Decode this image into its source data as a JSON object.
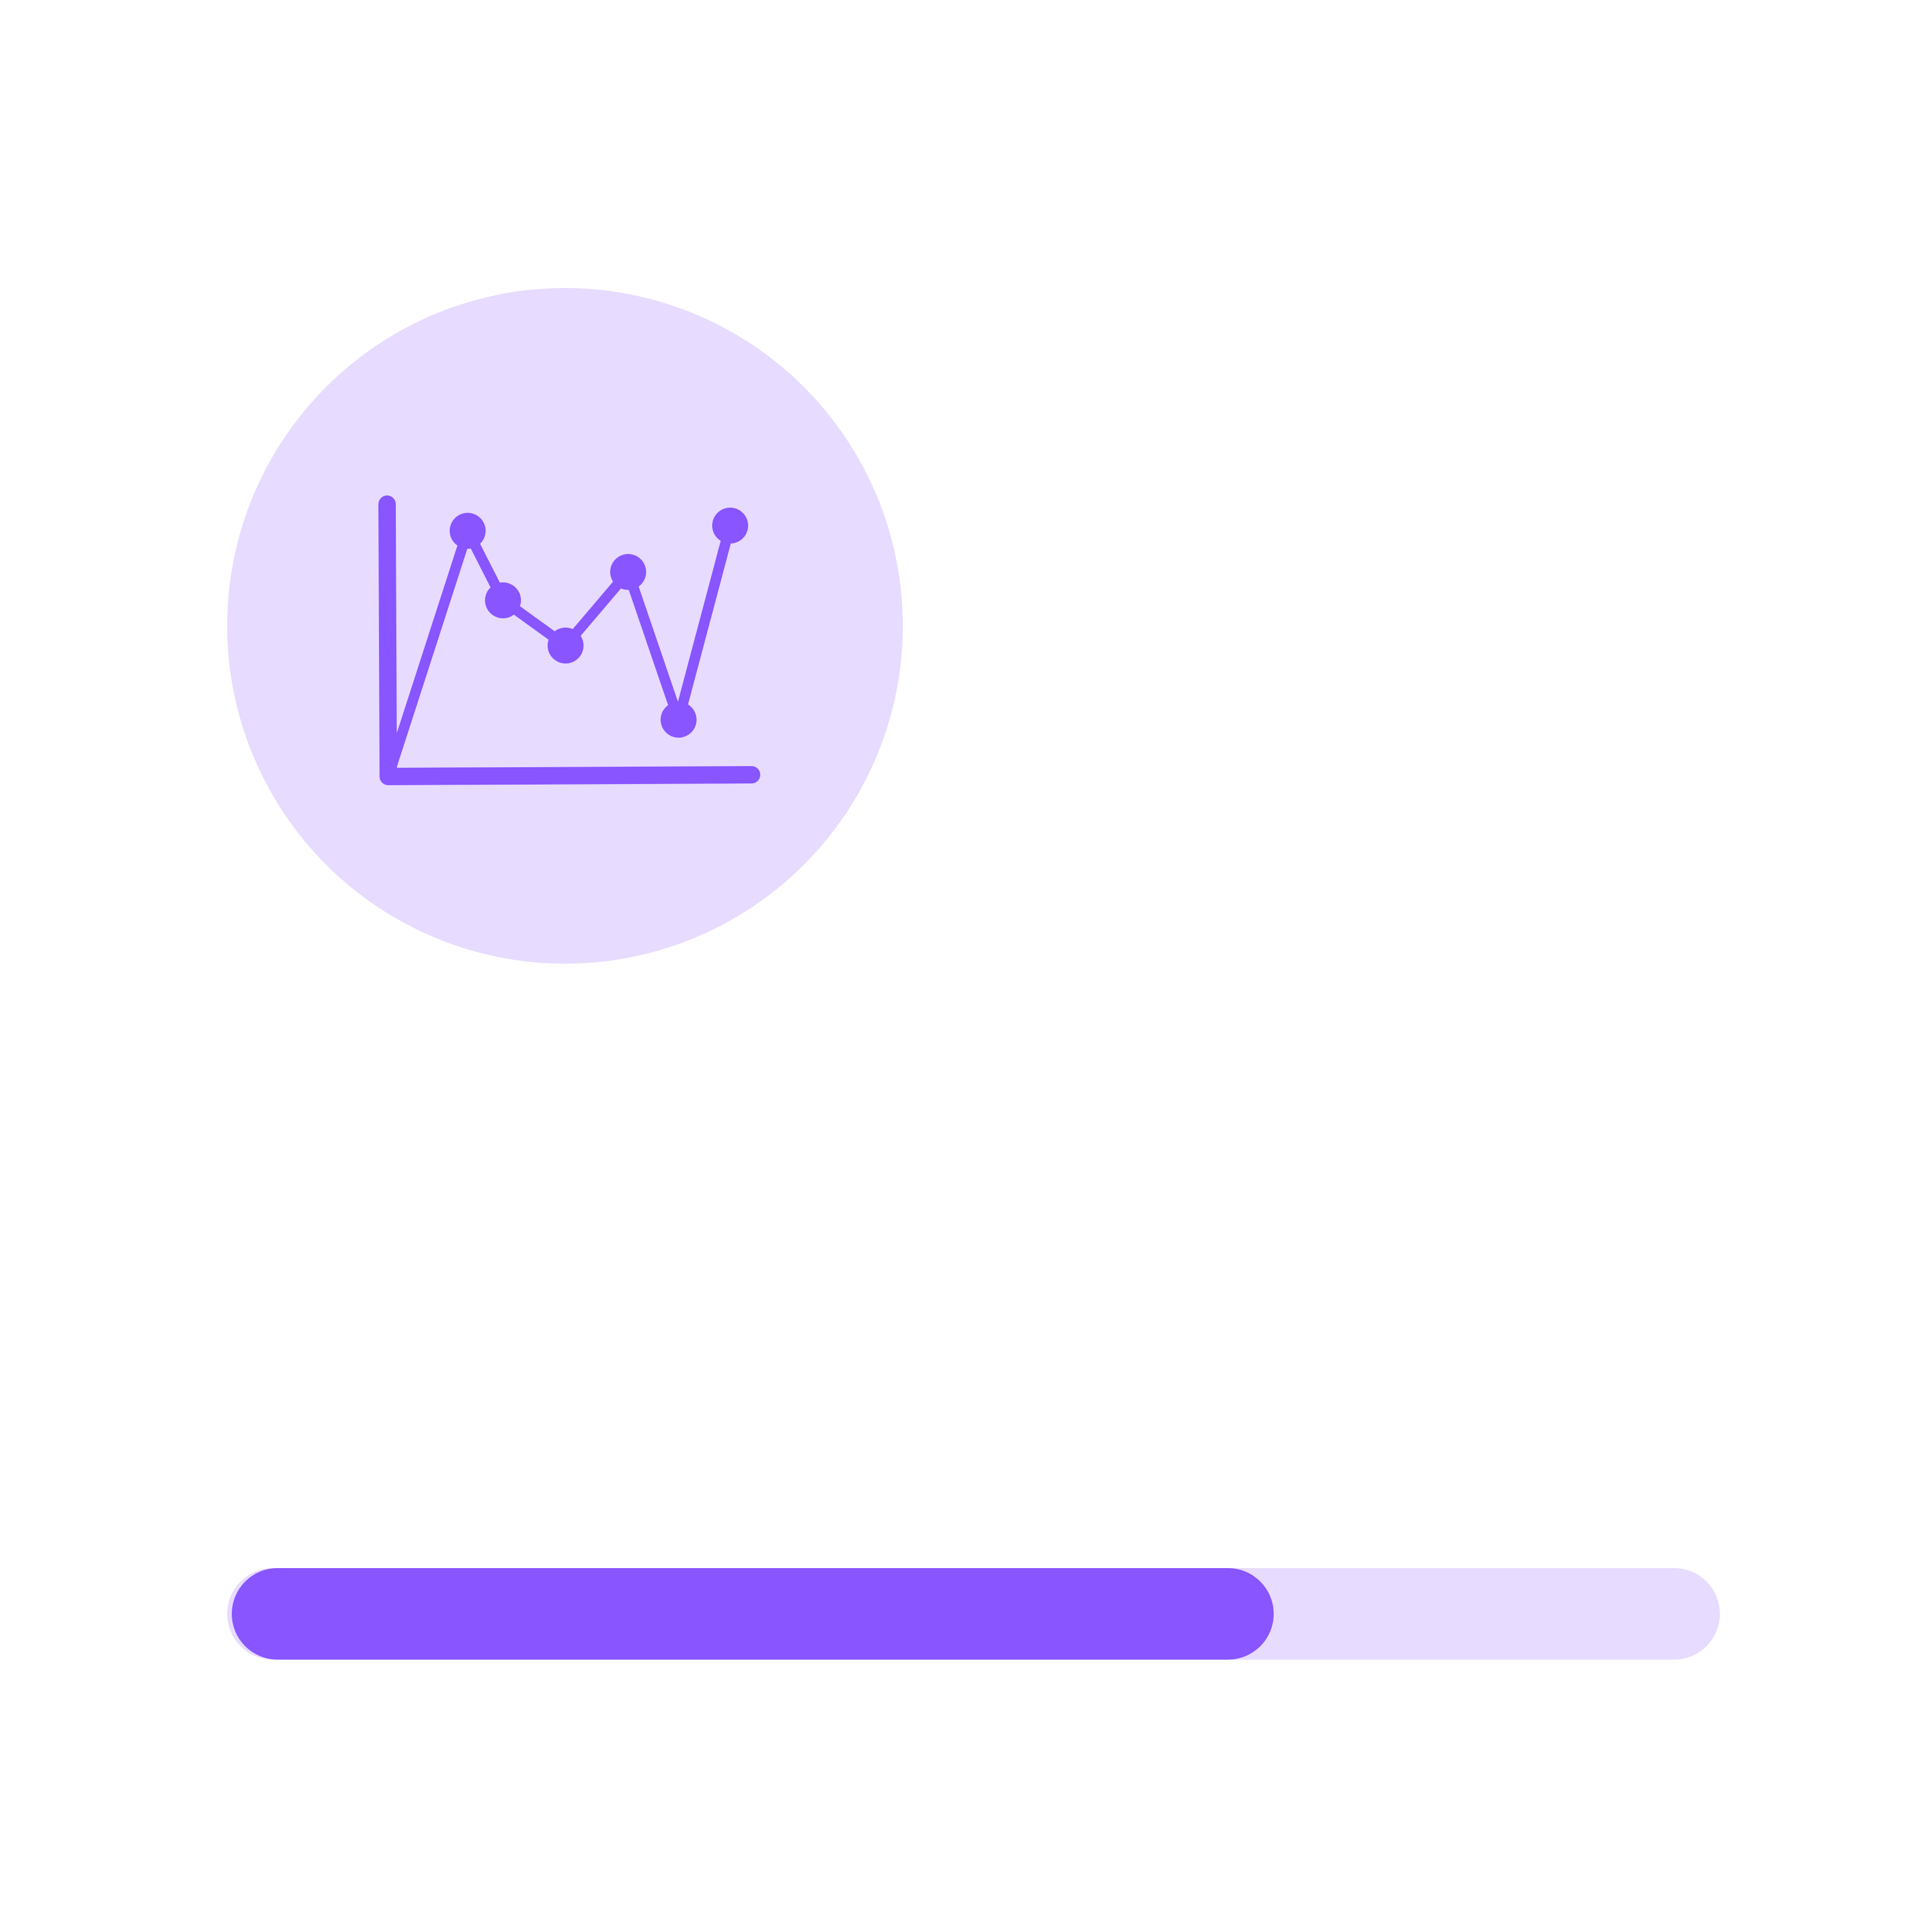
{
  "colors": {
    "accent": "#8855ff",
    "tint": "#e7dbff",
    "background": "#ffffff"
  },
  "icon": {
    "name": "line-chart-icon"
  },
  "progress": {
    "value": 0.7
  }
}
